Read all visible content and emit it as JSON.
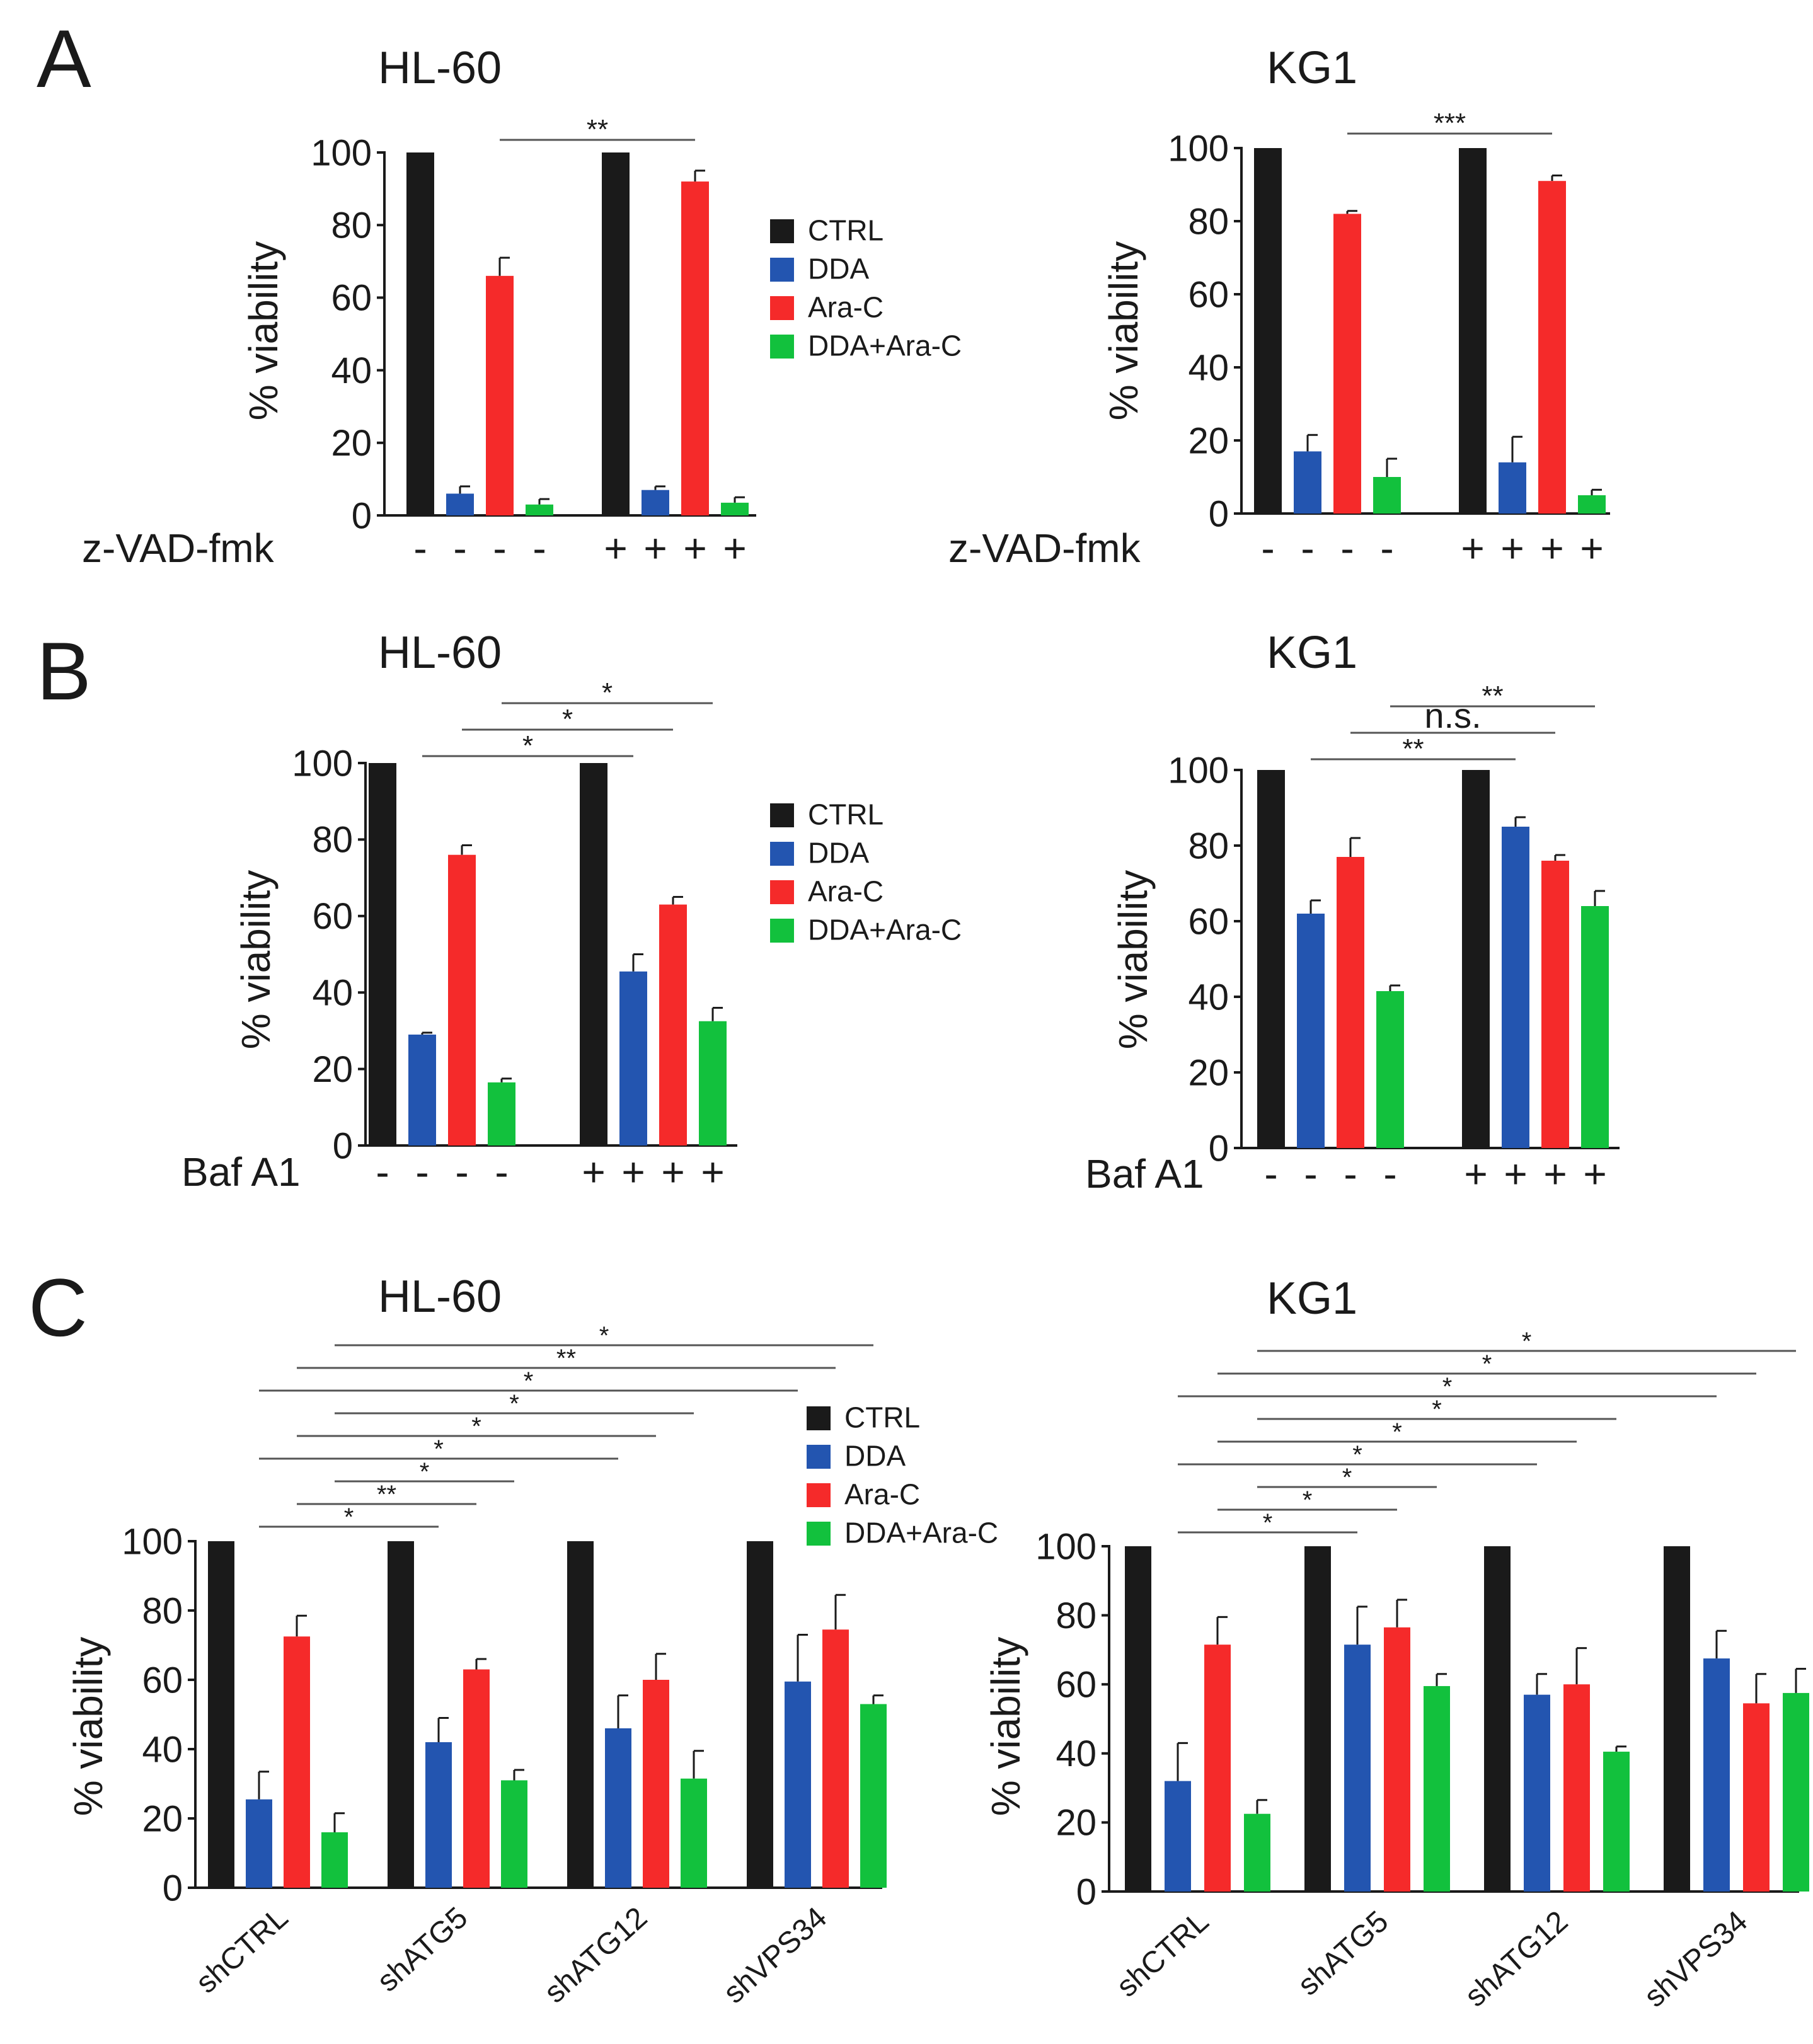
{
  "panel_letters": [
    "A",
    "B",
    "C"
  ],
  "colors": {
    "CTRL": "#1a1a1a",
    "DDA": "#2355b0",
    "Ara-C": "#f52a2a",
    "DDA+Ara-C": "#12c13d",
    "axis": "#1a1a1a",
    "bracket": "#555555"
  },
  "chart_data": [
    {
      "id": "A-HL60",
      "panel": "A",
      "type": "bar",
      "title": "HL-60",
      "ylabel": "% viability",
      "ylim": [
        0,
        100
      ],
      "yticks": [
        0,
        20,
        40,
        60,
        80,
        100
      ],
      "series_names": [
        "CTRL",
        "DDA",
        "Ara-C",
        "DDA+Ara-C"
      ],
      "treatment_label": "z-VAD-fmk",
      "groups": [
        {
          "label": "",
          "treatment": [
            "-",
            "-",
            "-",
            "-"
          ],
          "values": [
            100,
            6,
            66,
            3
          ],
          "errors": [
            0,
            2,
            5,
            1.5
          ]
        },
        {
          "label": "",
          "treatment": [
            "+",
            "+",
            "+",
            "+"
          ],
          "values": [
            100,
            7,
            92,
            3.5
          ],
          "errors": [
            0,
            1,
            3,
            1.5
          ]
        }
      ],
      "legend": [
        "CTRL",
        "DDA",
        "Ara-C",
        "DDA+Ara-C"
      ],
      "comparisons": [
        {
          "from": [
            0,
            2
          ],
          "to": [
            1,
            2
          ],
          "label": "**"
        }
      ]
    },
    {
      "id": "A-KG1",
      "panel": "A",
      "type": "bar",
      "title": "KG1",
      "ylabel": "% viability",
      "ylim": [
        0,
        100
      ],
      "yticks": [
        0,
        20,
        40,
        60,
        80,
        100
      ],
      "series_names": [
        "CTRL",
        "DDA",
        "Ara-C",
        "DDA+Ara-C"
      ],
      "treatment_label": "z-VAD-fmk",
      "groups": [
        {
          "label": "",
          "treatment": [
            "-",
            "-",
            "-",
            "-"
          ],
          "values": [
            100,
            17,
            82,
            10
          ],
          "errors": [
            0,
            4.5,
            0.8,
            5
          ]
        },
        {
          "label": "",
          "treatment": [
            "+",
            "+",
            "+",
            "+"
          ],
          "values": [
            100,
            14,
            91,
            5
          ],
          "errors": [
            0,
            7,
            1.5,
            1.5
          ]
        }
      ],
      "legend": [],
      "comparisons": [
        {
          "from": [
            0,
            2
          ],
          "to": [
            1,
            2
          ],
          "label": "***"
        }
      ]
    },
    {
      "id": "B-HL60",
      "panel": "B",
      "type": "bar",
      "title": "HL-60",
      "ylabel": "% viability",
      "ylim": [
        0,
        100
      ],
      "yticks": [
        0,
        20,
        40,
        60,
        80,
        100
      ],
      "series_names": [
        "CTRL",
        "DDA",
        "Ara-C",
        "DDA+Ara-C"
      ],
      "treatment_label": "Baf A1",
      "groups": [
        {
          "label": "",
          "treatment": [
            "-",
            "-",
            "-",
            "-"
          ],
          "values": [
            100,
            29,
            76,
            16.5
          ],
          "errors": [
            0,
            0.5,
            2.5,
            1
          ]
        },
        {
          "label": "",
          "treatment": [
            "+",
            "+",
            "+",
            "+"
          ],
          "values": [
            100,
            45.5,
            63,
            32.5
          ],
          "errors": [
            0,
            4.5,
            2,
            3.5
          ]
        }
      ],
      "legend": [
        "CTRL",
        "DDA",
        "Ara-C",
        "DDA+Ara-C"
      ],
      "comparisons": [
        {
          "from": [
            0,
            1
          ],
          "to": [
            1,
            1
          ],
          "label": "*"
        },
        {
          "from": [
            0,
            2
          ],
          "to": [
            1,
            2
          ],
          "label": "*"
        },
        {
          "from": [
            0,
            3
          ],
          "to": [
            1,
            3
          ],
          "label": "*"
        }
      ]
    },
    {
      "id": "B-KG1",
      "panel": "B",
      "type": "bar",
      "title": "KG1",
      "ylabel": "% viability",
      "ylim": [
        0,
        100
      ],
      "yticks": [
        0,
        20,
        40,
        60,
        80,
        100
      ],
      "series_names": [
        "CTRL",
        "DDA",
        "Ara-C",
        "DDA+Ara-C"
      ],
      "treatment_label": "Baf A1",
      "groups": [
        {
          "label": "",
          "treatment": [
            "-",
            "-",
            "-",
            "-"
          ],
          "values": [
            100,
            62,
            77,
            41.5
          ],
          "errors": [
            0,
            3.5,
            5,
            1.5
          ]
        },
        {
          "label": "",
          "treatment": [
            "+",
            "+",
            "+",
            "+"
          ],
          "values": [
            100,
            85,
            76,
            64
          ],
          "errors": [
            0,
            2.5,
            1.5,
            4
          ]
        }
      ],
      "legend": [],
      "comparisons": [
        {
          "from": [
            0,
            1
          ],
          "to": [
            1,
            1
          ],
          "label": "**"
        },
        {
          "from": [
            0,
            2
          ],
          "to": [
            1,
            2
          ],
          "label": "n.s."
        },
        {
          "from": [
            0,
            3
          ],
          "to": [
            1,
            3
          ],
          "label": "**"
        }
      ]
    },
    {
      "id": "C-HL60",
      "panel": "C",
      "type": "bar",
      "title": "HL-60",
      "ylabel": "% viability",
      "ylim": [
        0,
        100
      ],
      "yticks": [
        0,
        20,
        40,
        60,
        80,
        100
      ],
      "series_names": [
        "CTRL",
        "DDA",
        "Ara-C",
        "DDA+Ara-C"
      ],
      "treatment_label": "",
      "groups": [
        {
          "label": "shCTRL",
          "treatment": [],
          "values": [
            100,
            25.5,
            72.5,
            16
          ],
          "errors": [
            0,
            8,
            6,
            5.5
          ]
        },
        {
          "label": "shATG5",
          "treatment": [],
          "values": [
            100,
            42,
            63,
            31
          ],
          "errors": [
            0,
            7,
            3,
            3
          ]
        },
        {
          "label": "shATG12",
          "treatment": [],
          "values": [
            100,
            46,
            60,
            31.5
          ],
          "errors": [
            0,
            9.5,
            7.5,
            8
          ]
        },
        {
          "label": "shVPS34",
          "treatment": [],
          "values": [
            100,
            59.5,
            74.5,
            53
          ],
          "errors": [
            0,
            13.5,
            10,
            2.5
          ]
        }
      ],
      "legend": [
        "CTRL",
        "DDA",
        "Ara-C",
        "DDA+Ara-C"
      ],
      "comparisons": [
        {
          "from": [
            0,
            1
          ],
          "to": [
            1,
            1
          ],
          "label": "*"
        },
        {
          "from": [
            0,
            2
          ],
          "to": [
            1,
            2
          ],
          "label": "**"
        },
        {
          "from": [
            0,
            3
          ],
          "to": [
            1,
            3
          ],
          "label": "*"
        },
        {
          "from": [
            0,
            1
          ],
          "to": [
            2,
            1
          ],
          "label": "*"
        },
        {
          "from": [
            0,
            2
          ],
          "to": [
            2,
            2
          ],
          "label": "*"
        },
        {
          "from": [
            0,
            3
          ],
          "to": [
            2,
            3
          ],
          "label": "*"
        },
        {
          "from": [
            0,
            1
          ],
          "to": [
            3,
            1
          ],
          "label": "*"
        },
        {
          "from": [
            0,
            2
          ],
          "to": [
            3,
            2
          ],
          "label": "**"
        },
        {
          "from": [
            0,
            3
          ],
          "to": [
            3,
            3
          ],
          "label": "*"
        }
      ]
    },
    {
      "id": "C-KG1",
      "panel": "C",
      "type": "bar",
      "title": "KG1",
      "ylabel": "% viability",
      "ylim": [
        0,
        100
      ],
      "yticks": [
        0,
        20,
        40,
        60,
        80,
        100
      ],
      "series_names": [
        "CTRL",
        "DDA",
        "Ara-C",
        "DDA+Ara-C"
      ],
      "treatment_label": "",
      "groups": [
        {
          "label": "shCTRL",
          "treatment": [],
          "values": [
            100,
            32,
            71.5,
            22.5
          ],
          "errors": [
            0,
            11,
            8,
            4
          ]
        },
        {
          "label": "shATG5",
          "treatment": [],
          "values": [
            100,
            71.5,
            76.5,
            59.5
          ],
          "errors": [
            0,
            11,
            8,
            3.5
          ]
        },
        {
          "label": "shATG12",
          "treatment": [],
          "values": [
            100,
            57,
            60,
            40.5
          ],
          "errors": [
            0,
            6,
            10.5,
            1.5
          ]
        },
        {
          "label": "shVPS34",
          "treatment": [],
          "values": [
            100,
            67.5,
            54.5,
            57.5
          ],
          "errors": [
            0,
            8,
            8.5,
            7
          ]
        }
      ],
      "legend": [],
      "comparisons": [
        {
          "from": [
            0,
            1
          ],
          "to": [
            1,
            1
          ],
          "label": "*"
        },
        {
          "from": [
            0,
            2
          ],
          "to": [
            1,
            2
          ],
          "label": "*"
        },
        {
          "from": [
            0,
            3
          ],
          "to": [
            1,
            3
          ],
          "label": "*"
        },
        {
          "from": [
            0,
            1
          ],
          "to": [
            2,
            1
          ],
          "label": "*"
        },
        {
          "from": [
            0,
            2
          ],
          "to": [
            2,
            2
          ],
          "label": "*"
        },
        {
          "from": [
            0,
            3
          ],
          "to": [
            2,
            3
          ],
          "label": "*"
        },
        {
          "from": [
            0,
            1
          ],
          "to": [
            3,
            1
          ],
          "label": "*"
        },
        {
          "from": [
            0,
            2
          ],
          "to": [
            3,
            2
          ],
          "label": "*"
        },
        {
          "from": [
            0,
            3
          ],
          "to": [
            3,
            3
          ],
          "label": "*"
        }
      ]
    }
  ]
}
